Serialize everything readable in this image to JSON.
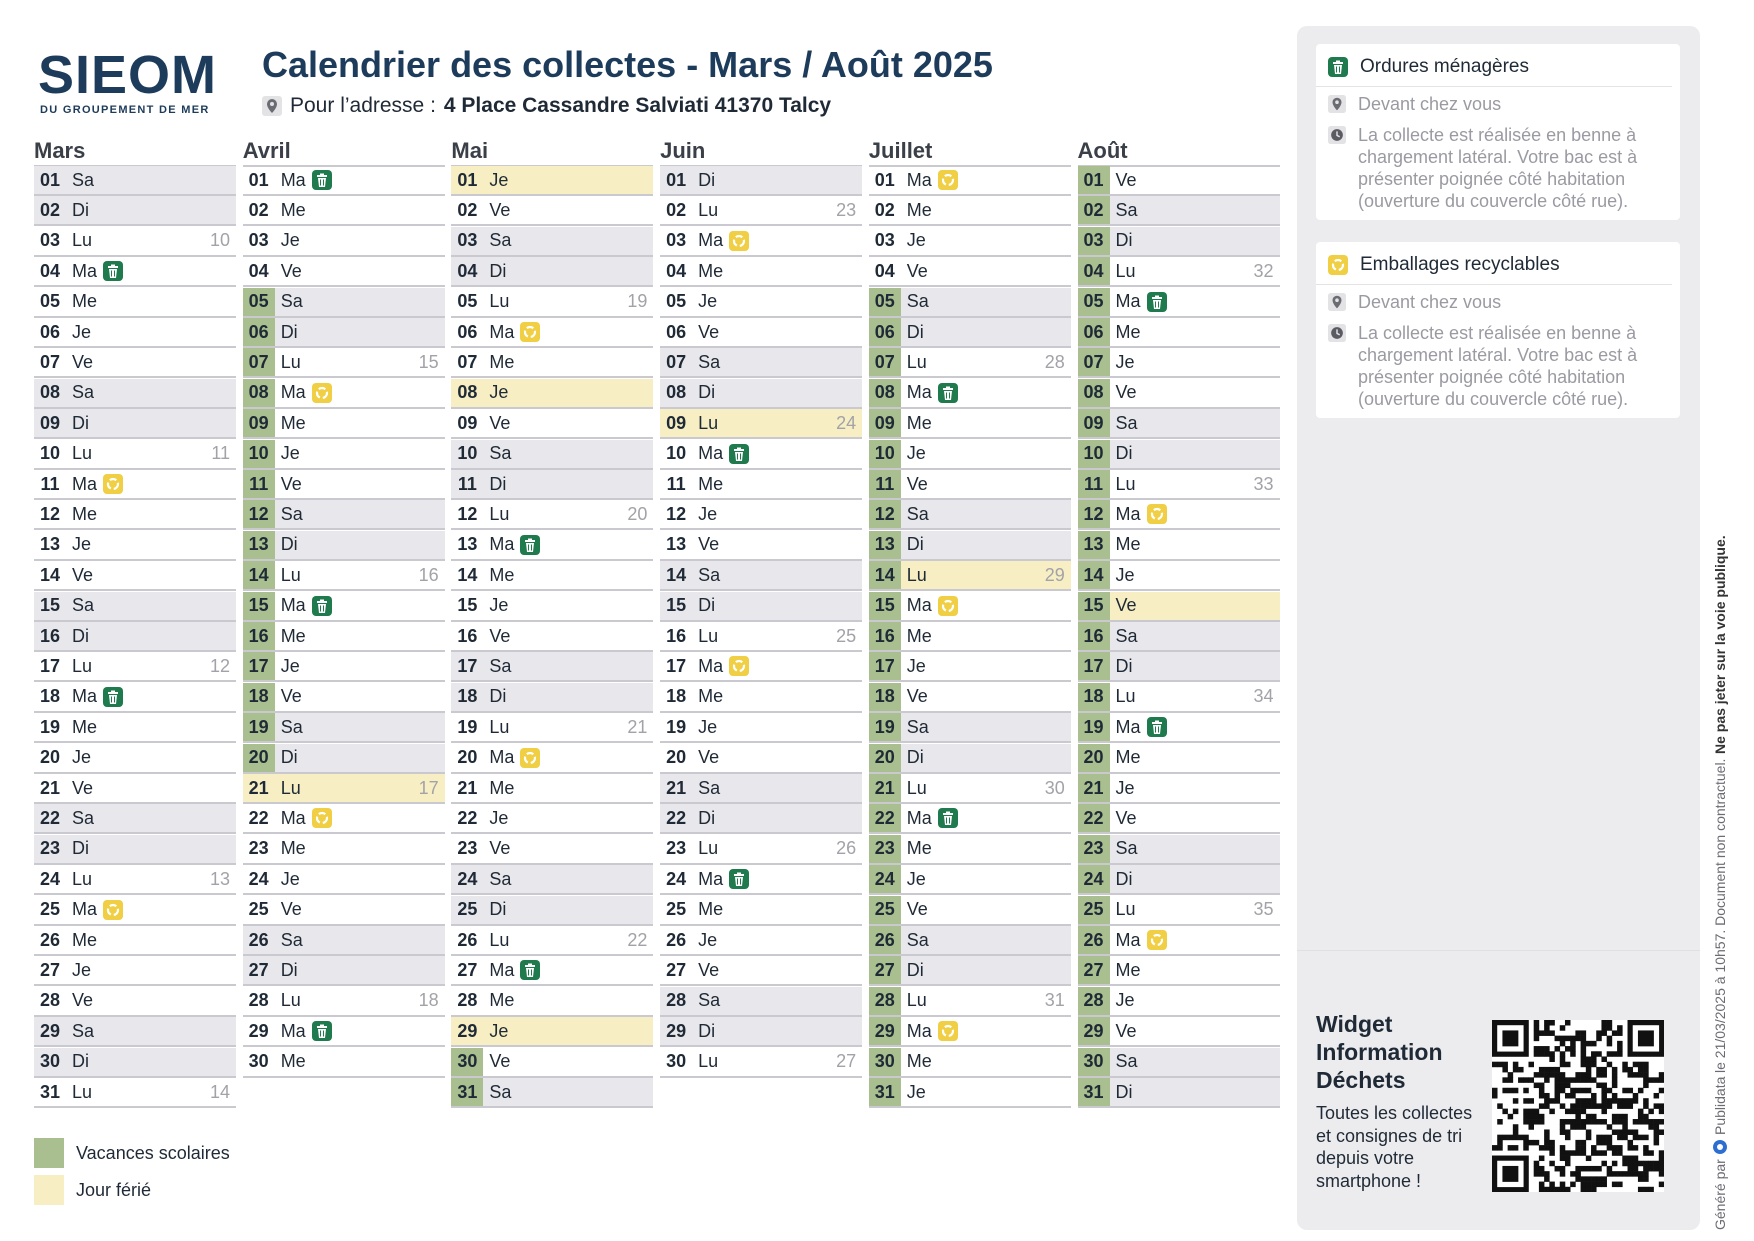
{
  "header": {
    "logo": "SIEOM",
    "logo_sub": "DU GROUPEMENT DE MER",
    "title": "Calendrier des collectes - Mars / Août 2025",
    "address_label": "Pour l’adresse :",
    "address": "4 Place Cassandre Salviati 41370 Talcy"
  },
  "months": [
    {
      "name": "Mars",
      "days": [
        {
          "day": "01",
          "wd": "Sa",
          "we": true
        },
        {
          "day": "02",
          "wd": "Di",
          "we": true
        },
        {
          "day": "03",
          "wd": "Lu",
          "week": 10
        },
        {
          "day": "04",
          "wd": "Ma",
          "bin": 0
        },
        {
          "day": "05",
          "wd": "Me"
        },
        {
          "day": "06",
          "wd": "Je"
        },
        {
          "day": "07",
          "wd": "Ve"
        },
        {
          "day": "08",
          "wd": "Sa",
          "we": true
        },
        {
          "day": "09",
          "wd": "Di",
          "we": true
        },
        {
          "day": "10",
          "wd": "Lu",
          "week": 11
        },
        {
          "day": "11",
          "wd": "Ma",
          "bin": 1
        },
        {
          "day": "12",
          "wd": "Me"
        },
        {
          "day": "13",
          "wd": "Je"
        },
        {
          "day": "14",
          "wd": "Ve"
        },
        {
          "day": "15",
          "wd": "Sa",
          "we": true
        },
        {
          "day": "16",
          "wd": "Di",
          "we": true
        },
        {
          "day": "17",
          "wd": "Lu",
          "week": 12
        },
        {
          "day": "18",
          "wd": "Ma",
          "bin": 0
        },
        {
          "day": "19",
          "wd": "Me"
        },
        {
          "day": "20",
          "wd": "Je"
        },
        {
          "day": "21",
          "wd": "Ve"
        },
        {
          "day": "22",
          "wd": "Sa",
          "we": true
        },
        {
          "day": "23",
          "wd": "Di",
          "we": true
        },
        {
          "day": "24",
          "wd": "Lu",
          "week": 13
        },
        {
          "day": "25",
          "wd": "Ma",
          "bin": 1
        },
        {
          "day": "26",
          "wd": "Me"
        },
        {
          "day": "27",
          "wd": "Je"
        },
        {
          "day": "28",
          "wd": "Ve"
        },
        {
          "day": "29",
          "wd": "Sa",
          "we": true
        },
        {
          "day": "30",
          "wd": "Di",
          "we": true
        },
        {
          "day": "31",
          "wd": "Lu",
          "week": 14
        }
      ]
    },
    {
      "name": "Avril",
      "days": [
        {
          "day": "01",
          "wd": "Ma",
          "bin": 0
        },
        {
          "day": "02",
          "wd": "Me"
        },
        {
          "day": "03",
          "wd": "Je"
        },
        {
          "day": "04",
          "wd": "Ve"
        },
        {
          "day": "05",
          "wd": "Sa",
          "we": true,
          "vac": true
        },
        {
          "day": "06",
          "wd": "Di",
          "we": true,
          "vac": true
        },
        {
          "day": "07",
          "wd": "Lu",
          "week": 15,
          "vac": true
        },
        {
          "day": "08",
          "wd": "Ma",
          "bin": 1,
          "vac": true
        },
        {
          "day": "09",
          "wd": "Me",
          "vac": true
        },
        {
          "day": "10",
          "wd": "Je",
          "vac": true
        },
        {
          "day": "11",
          "wd": "Ve",
          "vac": true
        },
        {
          "day": "12",
          "wd": "Sa",
          "we": true,
          "vac": true
        },
        {
          "day": "13",
          "wd": "Di",
          "we": true,
          "vac": true
        },
        {
          "day": "14",
          "wd": "Lu",
          "week": 16,
          "vac": true
        },
        {
          "day": "15",
          "wd": "Ma",
          "bin": 0,
          "vac": true
        },
        {
          "day": "16",
          "wd": "Me",
          "vac": true
        },
        {
          "day": "17",
          "wd": "Je",
          "vac": true
        },
        {
          "day": "18",
          "wd": "Ve",
          "vac": true
        },
        {
          "day": "19",
          "wd": "Sa",
          "we": true,
          "vac": true
        },
        {
          "day": "20",
          "wd": "Di",
          "we": true,
          "vac": true
        },
        {
          "day": "21",
          "wd": "Lu",
          "week": 17,
          "hol": true
        },
        {
          "day": "22",
          "wd": "Ma",
          "bin": 1
        },
        {
          "day": "23",
          "wd": "Me"
        },
        {
          "day": "24",
          "wd": "Je"
        },
        {
          "day": "25",
          "wd": "Ve"
        },
        {
          "day": "26",
          "wd": "Sa",
          "we": true
        },
        {
          "day": "27",
          "wd": "Di",
          "we": true
        },
        {
          "day": "28",
          "wd": "Lu",
          "week": 18
        },
        {
          "day": "29",
          "wd": "Ma",
          "bin": 0
        },
        {
          "day": "30",
          "wd": "Me"
        }
      ]
    },
    {
      "name": "Mai",
      "days": [
        {
          "day": "01",
          "wd": "Je",
          "hol": true
        },
        {
          "day": "02",
          "wd": "Ve"
        },
        {
          "day": "03",
          "wd": "Sa",
          "we": true
        },
        {
          "day": "04",
          "wd": "Di",
          "we": true
        },
        {
          "day": "05",
          "wd": "Lu",
          "week": 19
        },
        {
          "day": "06",
          "wd": "Ma",
          "bin": 1
        },
        {
          "day": "07",
          "wd": "Me"
        },
        {
          "day": "08",
          "wd": "Je",
          "hol": true
        },
        {
          "day": "09",
          "wd": "Ve"
        },
        {
          "day": "10",
          "wd": "Sa",
          "we": true
        },
        {
          "day": "11",
          "wd": "Di",
          "we": true
        },
        {
          "day": "12",
          "wd": "Lu",
          "week": 20
        },
        {
          "day": "13",
          "wd": "Ma",
          "bin": 0
        },
        {
          "day": "14",
          "wd": "Me"
        },
        {
          "day": "15",
          "wd": "Je"
        },
        {
          "day": "16",
          "wd": "Ve"
        },
        {
          "day": "17",
          "wd": "Sa",
          "we": true
        },
        {
          "day": "18",
          "wd": "Di",
          "we": true
        },
        {
          "day": "19",
          "wd": "Lu",
          "week": 21
        },
        {
          "day": "20",
          "wd": "Ma",
          "bin": 1
        },
        {
          "day": "21",
          "wd": "Me"
        },
        {
          "day": "22",
          "wd": "Je"
        },
        {
          "day": "23",
          "wd": "Ve"
        },
        {
          "day": "24",
          "wd": "Sa",
          "we": true
        },
        {
          "day": "25",
          "wd": "Di",
          "we": true
        },
        {
          "day": "26",
          "wd": "Lu",
          "week": 22
        },
        {
          "day": "27",
          "wd": "Ma",
          "bin": 0
        },
        {
          "day": "28",
          "wd": "Me"
        },
        {
          "day": "29",
          "wd": "Je",
          "hol": true
        },
        {
          "day": "30",
          "wd": "Ve",
          "vac": true
        },
        {
          "day": "31",
          "wd": "Sa",
          "we": true,
          "vac": true
        }
      ]
    },
    {
      "name": "Juin",
      "days": [
        {
          "day": "01",
          "wd": "Di",
          "we": true
        },
        {
          "day": "02",
          "wd": "Lu",
          "week": 23
        },
        {
          "day": "03",
          "wd": "Ma",
          "bin": 1
        },
        {
          "day": "04",
          "wd": "Me"
        },
        {
          "day": "05",
          "wd": "Je"
        },
        {
          "day": "06",
          "wd": "Ve"
        },
        {
          "day": "07",
          "wd": "Sa",
          "we": true
        },
        {
          "day": "08",
          "wd": "Di",
          "we": true
        },
        {
          "day": "09",
          "wd": "Lu",
          "week": 24,
          "hol": true
        },
        {
          "day": "10",
          "wd": "Ma",
          "bin": 0
        },
        {
          "day": "11",
          "wd": "Me"
        },
        {
          "day": "12",
          "wd": "Je"
        },
        {
          "day": "13",
          "wd": "Ve"
        },
        {
          "day": "14",
          "wd": "Sa",
          "we": true
        },
        {
          "day": "15",
          "wd": "Di",
          "we": true
        },
        {
          "day": "16",
          "wd": "Lu",
          "week": 25
        },
        {
          "day": "17",
          "wd": "Ma",
          "bin": 1
        },
        {
          "day": "18",
          "wd": "Me"
        },
        {
          "day": "19",
          "wd": "Je"
        },
        {
          "day": "20",
          "wd": "Ve"
        },
        {
          "day": "21",
          "wd": "Sa",
          "we": true
        },
        {
          "day": "22",
          "wd": "Di",
          "we": true
        },
        {
          "day": "23",
          "wd": "Lu",
          "week": 26
        },
        {
          "day": "24",
          "wd": "Ma",
          "bin": 0
        },
        {
          "day": "25",
          "wd": "Me"
        },
        {
          "day": "26",
          "wd": "Je"
        },
        {
          "day": "27",
          "wd": "Ve"
        },
        {
          "day": "28",
          "wd": "Sa",
          "we": true
        },
        {
          "day": "29",
          "wd": "Di",
          "we": true
        },
        {
          "day": "30",
          "wd": "Lu",
          "week": 27
        }
      ]
    },
    {
      "name": "Juillet",
      "days": [
        {
          "day": "01",
          "wd": "Ma",
          "bin": 1
        },
        {
          "day": "02",
          "wd": "Me"
        },
        {
          "day": "03",
          "wd": "Je"
        },
        {
          "day": "04",
          "wd": "Ve"
        },
        {
          "day": "05",
          "wd": "Sa",
          "we": true,
          "vac": true
        },
        {
          "day": "06",
          "wd": "Di",
          "we": true,
          "vac": true
        },
        {
          "day": "07",
          "wd": "Lu",
          "week": 28,
          "vac": true
        },
        {
          "day": "08",
          "wd": "Ma",
          "bin": 0,
          "vac": true
        },
        {
          "day": "09",
          "wd": "Me",
          "vac": true
        },
        {
          "day": "10",
          "wd": "Je",
          "vac": true
        },
        {
          "day": "11",
          "wd": "Ve",
          "vac": true
        },
        {
          "day": "12",
          "wd": "Sa",
          "we": true,
          "vac": true
        },
        {
          "day": "13",
          "wd": "Di",
          "we": true,
          "vac": true
        },
        {
          "day": "14",
          "wd": "Lu",
          "week": 29,
          "vac": true,
          "hol": true
        },
        {
          "day": "15",
          "wd": "Ma",
          "bin": 1,
          "vac": true
        },
        {
          "day": "16",
          "wd": "Me",
          "vac": true
        },
        {
          "day": "17",
          "wd": "Je",
          "vac": true
        },
        {
          "day": "18",
          "wd": "Ve",
          "vac": true
        },
        {
          "day": "19",
          "wd": "Sa",
          "we": true,
          "vac": true
        },
        {
          "day": "20",
          "wd": "Di",
          "we": true,
          "vac": true
        },
        {
          "day": "21",
          "wd": "Lu",
          "week": 30,
          "vac": true
        },
        {
          "day": "22",
          "wd": "Ma",
          "bin": 0,
          "vac": true
        },
        {
          "day": "23",
          "wd": "Me",
          "vac": true
        },
        {
          "day": "24",
          "wd": "Je",
          "vac": true
        },
        {
          "day": "25",
          "wd": "Ve",
          "vac": true
        },
        {
          "day": "26",
          "wd": "Sa",
          "we": true,
          "vac": true
        },
        {
          "day": "27",
          "wd": "Di",
          "we": true,
          "vac": true
        },
        {
          "day": "28",
          "wd": "Lu",
          "week": 31,
          "vac": true
        },
        {
          "day": "29",
          "wd": "Ma",
          "bin": 1,
          "vac": true
        },
        {
          "day": "30",
          "wd": "Me",
          "vac": true
        },
        {
          "day": "31",
          "wd": "Je",
          "vac": true
        }
      ]
    },
    {
      "name": "Août",
      "days": [
        {
          "day": "01",
          "wd": "Ve",
          "vac": true
        },
        {
          "day": "02",
          "wd": "Sa",
          "we": true,
          "vac": true
        },
        {
          "day": "03",
          "wd": "Di",
          "we": true,
          "vac": true
        },
        {
          "day": "04",
          "wd": "Lu",
          "week": 32,
          "vac": true
        },
        {
          "day": "05",
          "wd": "Ma",
          "bin": 0,
          "vac": true
        },
        {
          "day": "06",
          "wd": "Me",
          "vac": true
        },
        {
          "day": "07",
          "wd": "Je",
          "vac": true
        },
        {
          "day": "08",
          "wd": "Ve",
          "vac": true
        },
        {
          "day": "09",
          "wd": "Sa",
          "we": true,
          "vac": true
        },
        {
          "day": "10",
          "wd": "Di",
          "we": true,
          "vac": true
        },
        {
          "day": "11",
          "wd": "Lu",
          "week": 33,
          "vac": true
        },
        {
          "day": "12",
          "wd": "Ma",
          "bin": 1,
          "vac": true
        },
        {
          "day": "13",
          "wd": "Me",
          "vac": true
        },
        {
          "day": "14",
          "wd": "Je",
          "vac": true
        },
        {
          "day": "15",
          "wd": "Ve",
          "vac": true,
          "hol": true
        },
        {
          "day": "16",
          "wd": "Sa",
          "we": true,
          "vac": true
        },
        {
          "day": "17",
          "wd": "Di",
          "we": true,
          "vac": true
        },
        {
          "day": "18",
          "wd": "Lu",
          "week": 34,
          "vac": true
        },
        {
          "day": "19",
          "wd": "Ma",
          "bin": 0,
          "vac": true
        },
        {
          "day": "20",
          "wd": "Me",
          "vac": true
        },
        {
          "day": "21",
          "wd": "Je",
          "vac": true
        },
        {
          "day": "22",
          "wd": "Ve",
          "vac": true
        },
        {
          "day": "23",
          "wd": "Sa",
          "we": true,
          "vac": true
        },
        {
          "day": "24",
          "wd": "Di",
          "we": true,
          "vac": true
        },
        {
          "day": "25",
          "wd": "Lu",
          "week": 35,
          "vac": true
        },
        {
          "day": "26",
          "wd": "Ma",
          "bin": 1,
          "vac": true
        },
        {
          "day": "27",
          "wd": "Me",
          "vac": true
        },
        {
          "day": "28",
          "wd": "Je",
          "vac": true
        },
        {
          "day": "29",
          "wd": "Ve",
          "vac": true
        },
        {
          "day": "30",
          "wd": "Sa",
          "we": true,
          "vac": true
        },
        {
          "day": "31",
          "wd": "Di",
          "we": true,
          "vac": true
        }
      ]
    }
  ],
  "legend": [
    {
      "label": "Vacances scolaires",
      "color": "#a9bf8f"
    },
    {
      "label": "Jour férié",
      "color": "#f7efc3"
    }
  ],
  "collections": [
    {
      "title": "Ordures ménagères",
      "color": "#1f7a4d",
      "where": "Devant chez vous",
      "info": "La collecte est réalisée en benne à chargement latéral. Votre bac est à présenter poignée côté habitation (ouverture du couvercle côté rue)."
    },
    {
      "title": "Emballages recyclables",
      "color": "#f0cf45",
      "where": "Devant chez vous",
      "info": "La collecte est réalisée en benne à chargement latéral. Votre bac est à présenter poignée côté habitation (ouverture du couvercle côté rue)."
    }
  ],
  "widget": {
    "title": "Widget Information Déchets",
    "text": "Toutes les collectes et consignes de tri depuis votre smartphone !"
  },
  "footer": {
    "generated": "Généré par",
    "brand": "Publidata",
    "date": "le 21/03/2025 à 10h57. Document non contractuel.",
    "warning": "Ne pas jeter sur la voie publique."
  }
}
